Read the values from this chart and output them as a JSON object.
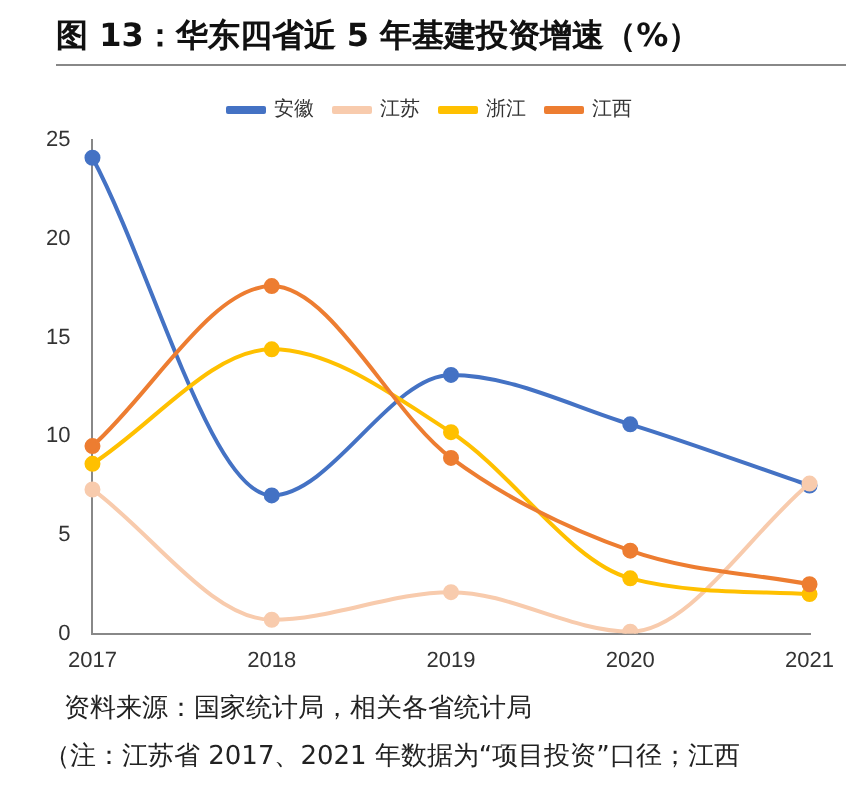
{
  "chart_data": {
    "type": "line",
    "title": "图 13：华东四省近 5 年基建投资增速（%）",
    "categories": [
      "2017",
      "2018",
      "2019",
      "2020",
      "2021"
    ],
    "series": [
      {
        "name": "安徽",
        "color": "#4472c4",
        "values": [
          24.1,
          7.0,
          13.1,
          10.6,
          7.5
        ]
      },
      {
        "name": "江苏",
        "color": "#f8cbad",
        "values": [
          7.3,
          0.7,
          2.1,
          0.1,
          7.6
        ]
      },
      {
        "name": "浙江",
        "color": "#ffc000",
        "values": [
          8.6,
          14.4,
          10.2,
          2.8,
          2.0
        ]
      },
      {
        "name": "江西",
        "color": "#ed7d31",
        "values": [
          9.5,
          17.6,
          8.9,
          4.2,
          2.5
        ]
      }
    ],
    "ylim": [
      0,
      25
    ],
    "yticks": [
      0,
      5,
      10,
      15,
      20,
      25
    ],
    "grid": false,
    "legend": "top",
    "marker": "circle",
    "line_style": "solid",
    "annotations": [
      "资料来源：国家统计局，相关各省统计局",
      "（注：江苏省 2017、2021 年数据为“项目投资”口径；江西"
    ]
  }
}
